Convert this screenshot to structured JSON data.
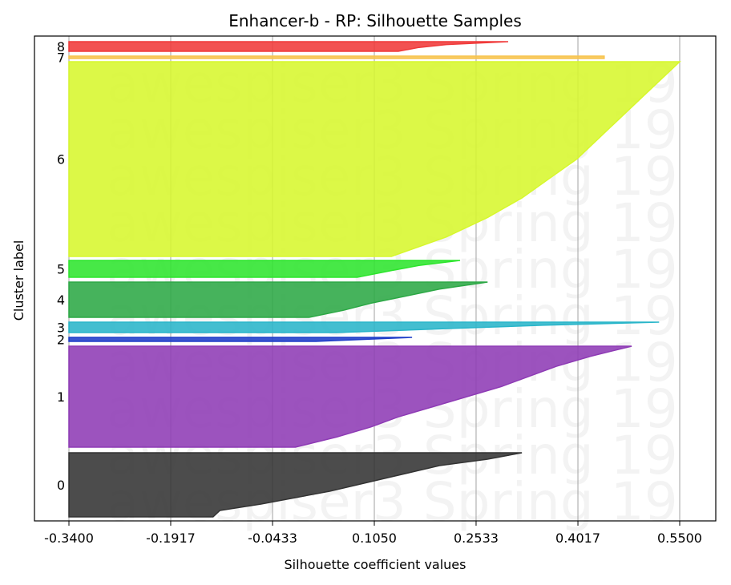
{
  "chart_data": {
    "type": "area",
    "title": "Enhancer-b - RP: Silhouette Samples",
    "xlabel": "Silhouette coefficient values",
    "ylabel": "Cluster label",
    "xlim": [
      -0.34,
      0.57
    ],
    "x_ticks": [
      "-0.3400",
      "-0.1917",
      "-0.0433",
      "0.1050",
      "0.2533",
      "0.4017",
      "0.5500"
    ],
    "x_tick_values": [
      -0.34,
      -0.1917,
      -0.0433,
      0.105,
      0.2533,
      0.4017,
      0.55
    ],
    "grid": "vertical",
    "watermark": "awespiser3 Spring 19",
    "clusters": [
      {
        "label": "0",
        "color": "#333333",
        "row_top": 565,
        "row_bottom": 645,
        "profile": [
          [
            0,
            0.32
          ],
          [
            0.1,
            0.27
          ],
          [
            0.2,
            0.2
          ],
          [
            0.3,
            0.16
          ],
          [
            0.4,
            0.12
          ],
          [
            0.5,
            0.08
          ],
          [
            0.6,
            0.04
          ],
          [
            0.7,
            -0.01
          ],
          [
            0.8,
            -0.06
          ],
          [
            0.9,
            -0.12
          ],
          [
            1.0,
            -0.13
          ]
        ]
      },
      {
        "label": "1",
        "color": "#8e3bb5",
        "row_top": 432,
        "row_bottom": 558,
        "profile": [
          [
            0,
            0.48
          ],
          [
            0.1,
            0.42
          ],
          [
            0.2,
            0.37
          ],
          [
            0.3,
            0.33
          ],
          [
            0.4,
            0.29
          ],
          [
            0.5,
            0.24
          ],
          [
            0.6,
            0.19
          ],
          [
            0.7,
            0.14
          ],
          [
            0.8,
            0.1
          ],
          [
            0.9,
            0.05
          ],
          [
            1.0,
            -0.01
          ]
        ]
      },
      {
        "label": "2",
        "color": "#1f3ec9",
        "row_top": 421,
        "row_bottom": 426,
        "profile": [
          [
            0,
            0.16
          ],
          [
            1.0,
            0.02
          ]
        ]
      },
      {
        "label": "3",
        "color": "#29b5c9",
        "row_top": 402,
        "row_bottom": 415,
        "profile": [
          [
            0,
            0.52
          ],
          [
            0.3,
            0.35
          ],
          [
            0.6,
            0.22
          ],
          [
            1.0,
            0.05
          ]
        ]
      },
      {
        "label": "4",
        "color": "#2ca845",
        "row_top": 352,
        "row_bottom": 396,
        "profile": [
          [
            0,
            0.27
          ],
          [
            0.2,
            0.2
          ],
          [
            0.4,
            0.15
          ],
          [
            0.6,
            0.1
          ],
          [
            0.8,
            0.06
          ],
          [
            1.0,
            0.01
          ]
        ]
      },
      {
        "label": "5",
        "color": "#2de52d",
        "row_top": 325,
        "row_bottom": 346,
        "profile": [
          [
            0,
            0.23
          ],
          [
            0.3,
            0.17
          ],
          [
            0.6,
            0.13
          ],
          [
            1.0,
            0.08
          ]
        ]
      },
      {
        "label": "6",
        "color": "#d7f72d",
        "row_top": 77,
        "row_bottom": 320,
        "profile": [
          [
            0,
            0.55
          ],
          [
            0.1,
            0.52
          ],
          [
            0.2,
            0.49
          ],
          [
            0.3,
            0.46
          ],
          [
            0.4,
            0.43
          ],
          [
            0.5,
            0.4
          ],
          [
            0.6,
            0.36
          ],
          [
            0.7,
            0.32
          ],
          [
            0.8,
            0.27
          ],
          [
            0.9,
            0.21
          ],
          [
            1.0,
            0.13
          ]
        ]
      },
      {
        "label": "7",
        "color": "#f7c44f",
        "row_top": 70,
        "row_bottom": 73,
        "profile": [
          [
            0,
            0.44
          ],
          [
            1.0,
            0.44
          ]
        ]
      },
      {
        "label": "8",
        "color": "#f03a3a",
        "row_top": 52,
        "row_bottom": 64,
        "profile": [
          [
            0,
            0.3
          ],
          [
            0.3,
            0.21
          ],
          [
            0.6,
            0.17
          ],
          [
            1.0,
            0.14
          ]
        ]
      }
    ]
  }
}
